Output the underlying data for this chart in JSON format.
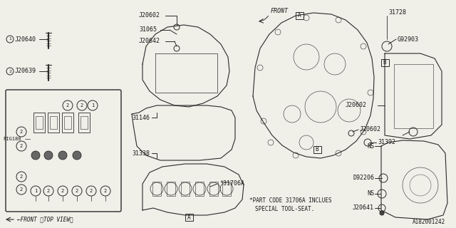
{
  "bg_color": "#f0efe8",
  "line_color": "#2a2a2a",
  "text_color": "#1a1a1a",
  "footnote_line1": "*PART CODE 31706A INCLUES",
  "footnote_line2": "SPECIAL TOOL-SEAT.",
  "diagram_id": "A182001242",
  "front_top_view": "<FRONT <TOP VIEW>",
  "front_arrow_label": "FRONT"
}
